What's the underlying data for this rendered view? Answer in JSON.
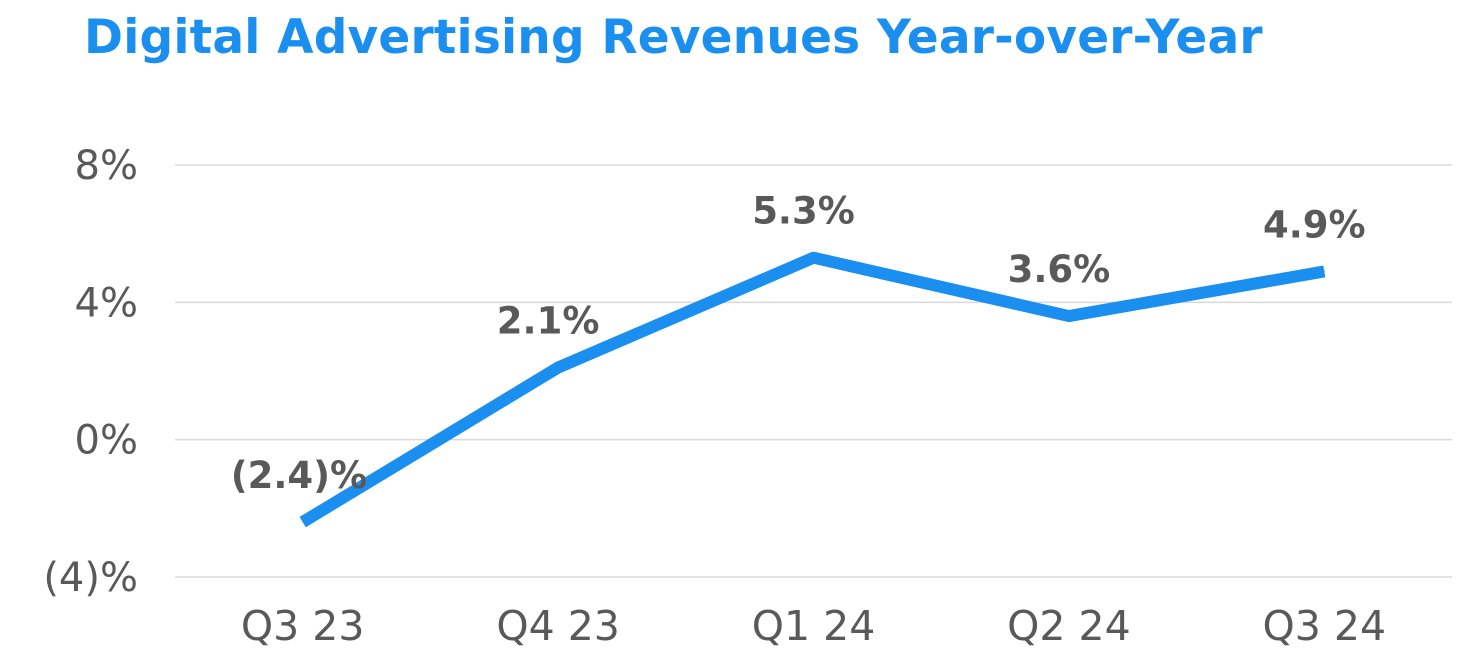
{
  "chart_data": {
    "type": "line",
    "title": "Digital Advertising Revenues Year-over-Year",
    "xlabel": "",
    "ylabel": "",
    "categories": [
      "Q3 23",
      "Q4 23",
      "Q1 24",
      "Q2 24",
      "Q3 24"
    ],
    "series": [
      {
        "values": [
          -2.4,
          2.1,
          5.3,
          3.6,
          4.9
        ],
        "labels": [
          "(2.4)%",
          "2.1%",
          "5.3%",
          "3.6%",
          "4.9%"
        ],
        "color": "#1a8fef"
      }
    ],
    "ylim": [
      -4,
      8
    ],
    "yticks": [
      8,
      4,
      0,
      -4
    ],
    "ytick_labels": [
      "8%",
      "4%",
      "0%",
      "(4)%"
    ],
    "grid": true,
    "legend": "none"
  },
  "colors": {
    "title": "#1a8fef",
    "line": "#1a8fef",
    "text": "#595959",
    "grid": "#d9d9d9"
  }
}
